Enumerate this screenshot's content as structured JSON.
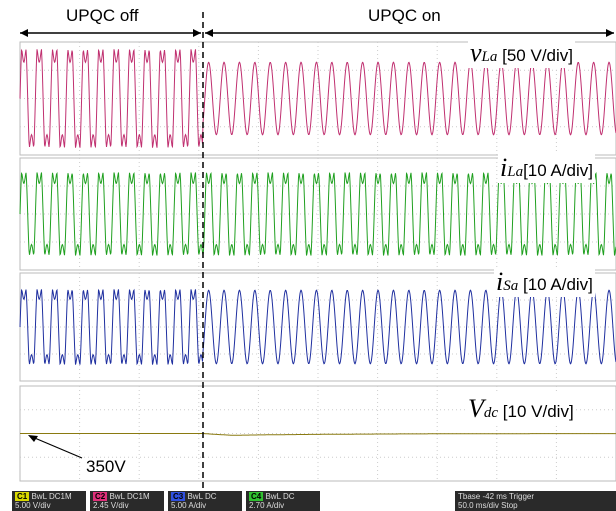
{
  "header": {
    "left": "UPQC off",
    "right": "UPQC on"
  },
  "traces": [
    {
      "symbol": "v",
      "sub": "La",
      "scale": "[50 V/div]"
    },
    {
      "symbol": "i",
      "sub": "La",
      "scale": "[10 A/div]"
    },
    {
      "symbol": "i",
      "sub": "Sa",
      "scale": "[10 A/div]"
    },
    {
      "symbol": "V",
      "sub": "dc",
      "scale": "[10 V/div]"
    }
  ],
  "annotation": "350V",
  "status": {
    "channels": [
      {
        "name": "C1",
        "mode": "BwL",
        "coupling": "DC1M",
        "scale": "5.00 V/div"
      },
      {
        "name": "C2",
        "mode": "BwL",
        "coupling": "DC1M",
        "scale": "2.45 V/div"
      },
      {
        "name": "C3",
        "mode": "BwL",
        "coupling": "DC",
        "scale": "5.00 A/div"
      },
      {
        "name": "C4",
        "mode": "BwL",
        "coupling": "DC",
        "scale": "2.70 A/div"
      }
    ],
    "timebase": "Tbase",
    "delay": "-42 ms",
    "tdiv": "50.0 ms/div",
    "trigger": "Trigger",
    "state": "Stop"
  }
}
